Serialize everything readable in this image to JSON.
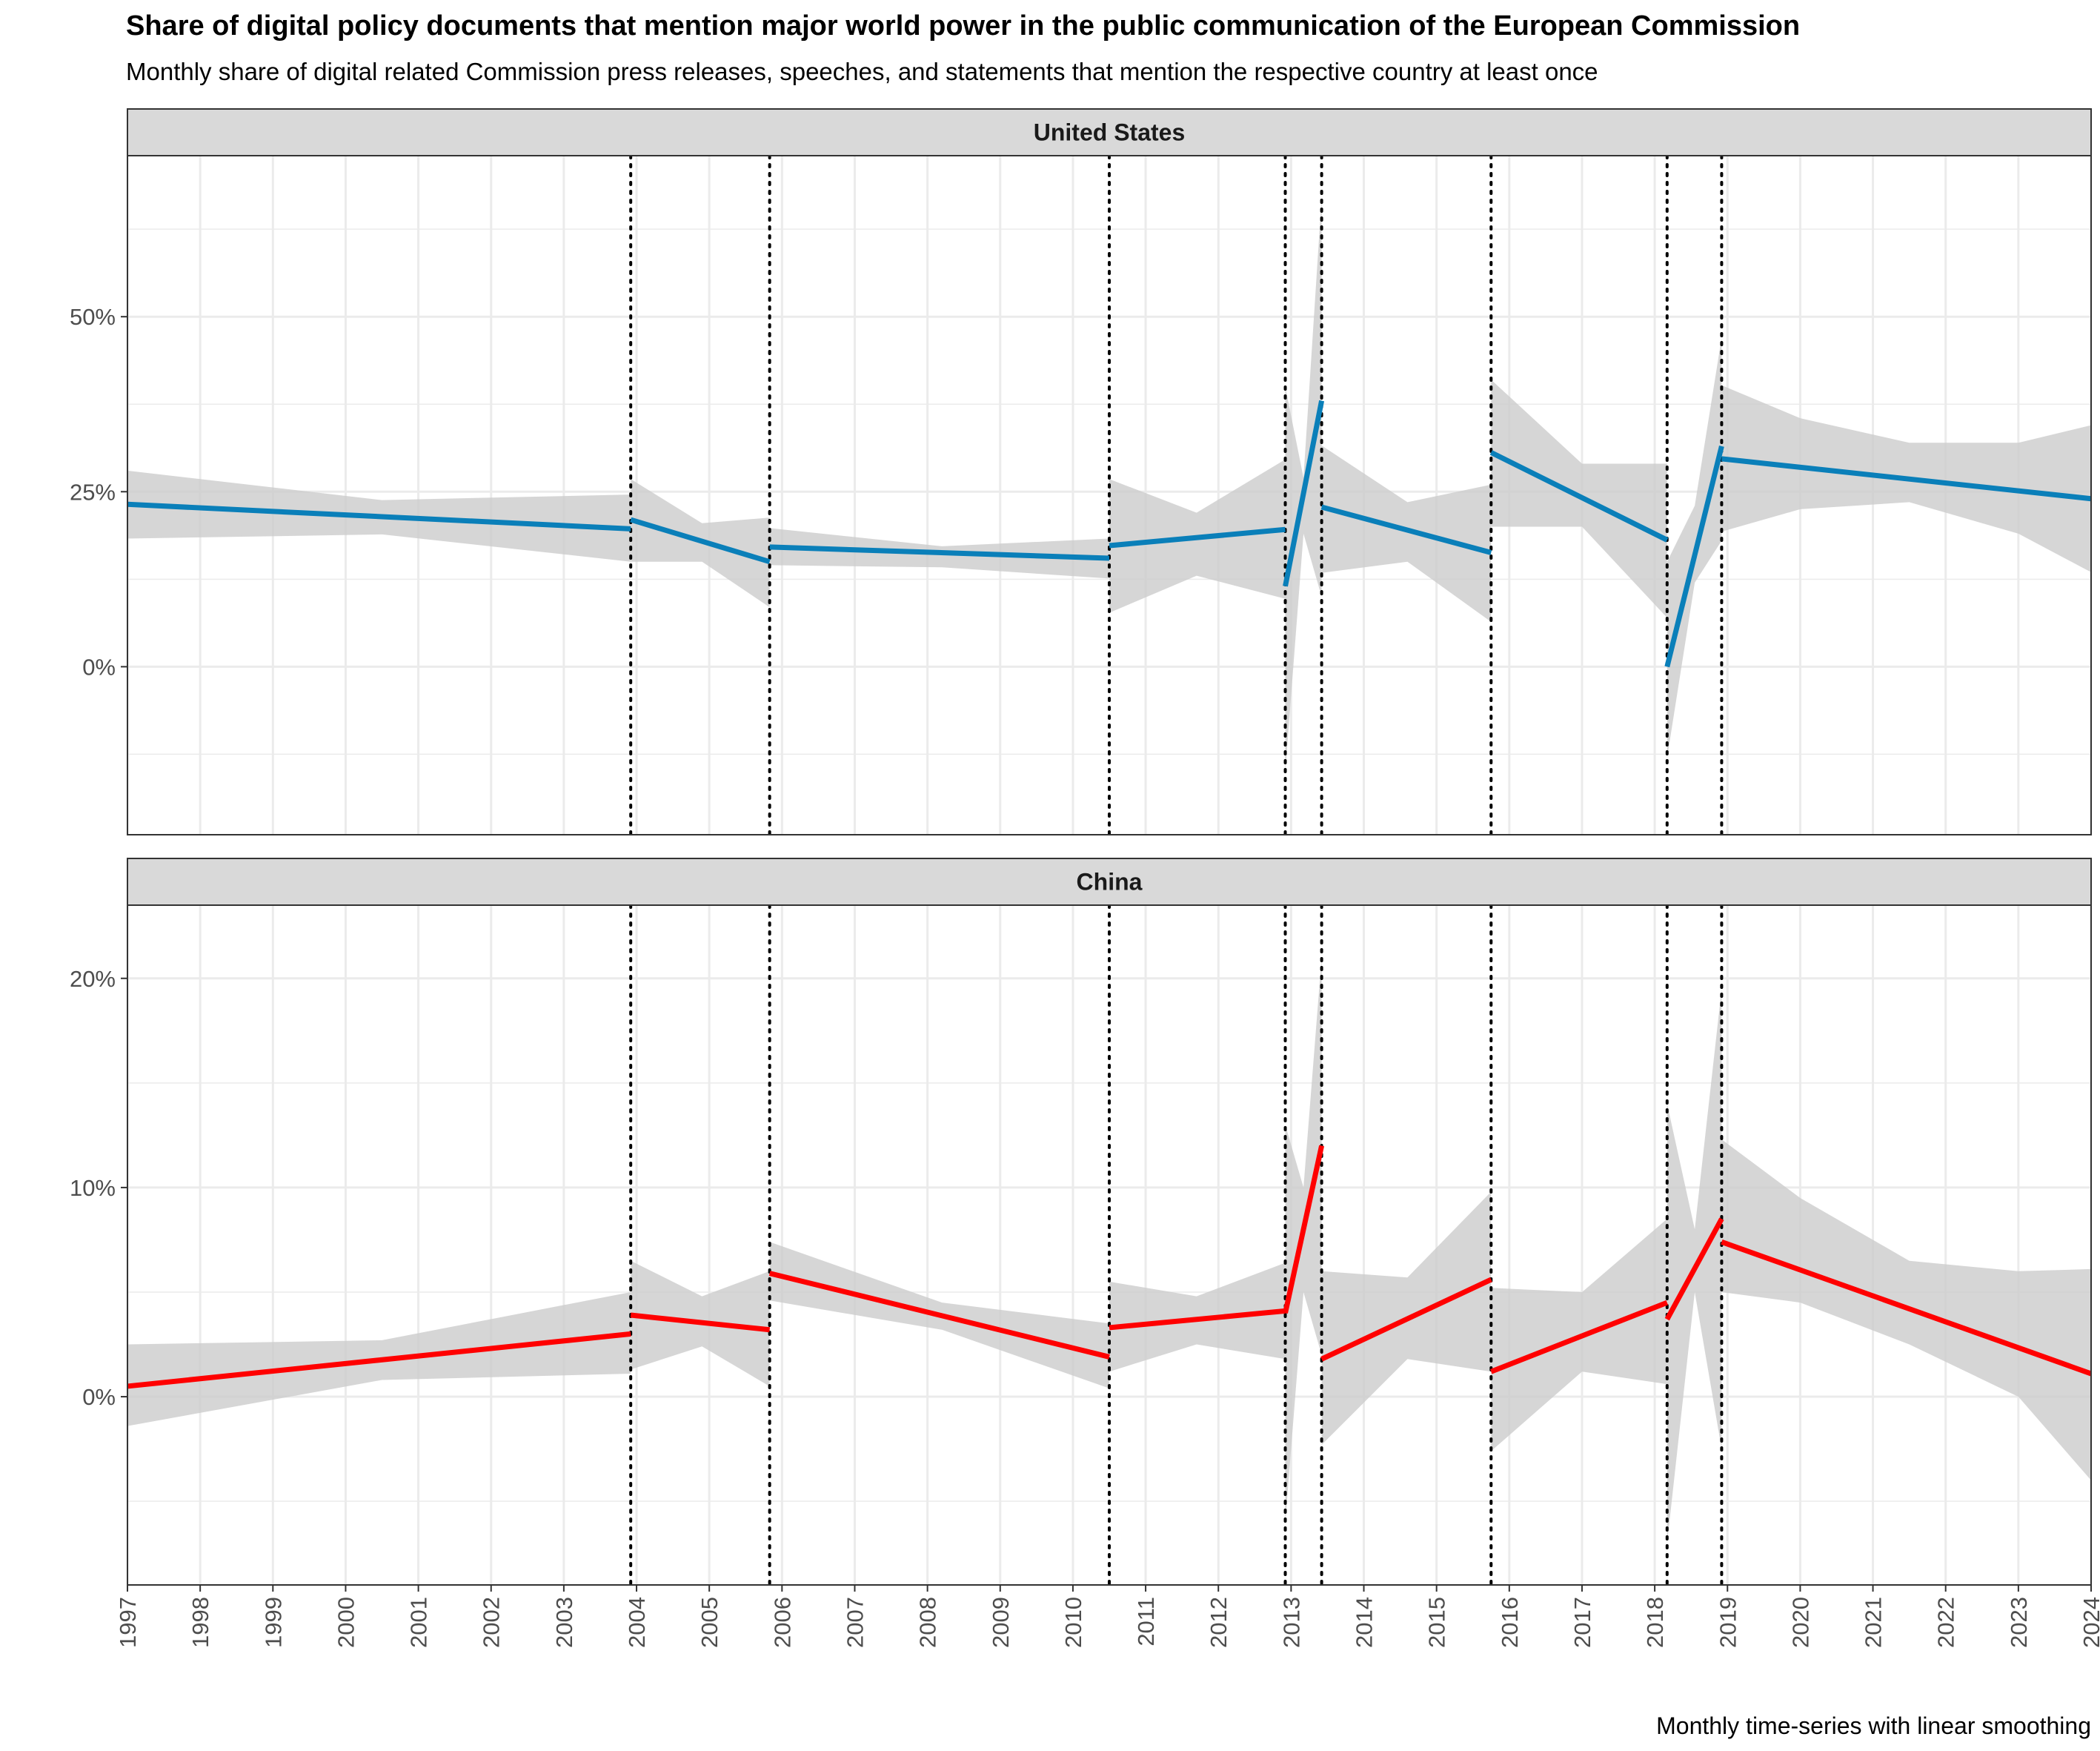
{
  "title": "Share of digital policy documents that mention major world power in the public communication of the European Commission",
  "subtitle": "Monthly share of digital related Commission press releases, speeches, and statements that mention the respective country at least once",
  "caption": "Monthly time-series with linear smoothing",
  "colors": {
    "united_states": "#0a7fb9",
    "china": "#ff0000",
    "ribbon": "#cccccc",
    "strip": "#d9d9d9",
    "grid": "#ebebeb",
    "border": "#333333",
    "vline": "#000000"
  },
  "chart_data": {
    "type": "line",
    "x_axis": {
      "range": [
        1997,
        2024
      ],
      "ticks": [
        "1997",
        "1998",
        "1999",
        "2000",
        "2001",
        "2002",
        "2003",
        "2004",
        "2005",
        "2006",
        "2007",
        "2008",
        "2009",
        "2010",
        "2011",
        "2012",
        "2013",
        "2014",
        "2015",
        "2016",
        "2017",
        "2018",
        "2019",
        "2020",
        "2021",
        "2022",
        "2023",
        "2024"
      ]
    },
    "breakpoints": [
      2003.92,
      2005.83,
      2010.5,
      2012.92,
      2013.42,
      2015.75,
      2018.17,
      2018.92
    ],
    "panels": [
      {
        "name": "United States",
        "color_key": "united_states",
        "ylim": [
          -0.24,
          0.73
        ],
        "y_ticks": [
          {
            "value": 0.0,
            "label": "0%"
          },
          {
            "value": 0.25,
            "label": "25%"
          },
          {
            "value": 0.5,
            "label": "50%"
          }
        ],
        "minor_y": [
          -0.125,
          0.125,
          0.375,
          0.625
        ],
        "segments": [
          {
            "x": [
              1997.0,
              2003.92
            ],
            "y": [
              0.232,
              0.197
            ],
            "ci_x": [
              1997.0,
              2000.5,
              2003.92
            ],
            "ci_low": [
              0.183,
              0.189,
              0.15
            ],
            "ci_high": [
              0.28,
              0.238,
              0.246
            ]
          },
          {
            "x": [
              2003.92,
              2005.83
            ],
            "y": [
              0.21,
              0.15
            ],
            "ci_x": [
              2003.92,
              2004.9,
              2005.83
            ],
            "ci_low": [
              0.15,
              0.15,
              0.085
            ],
            "ci_high": [
              0.268,
              0.205,
              0.213
            ]
          },
          {
            "x": [
              2005.83,
              2010.5
            ],
            "y": [
              0.171,
              0.155
            ],
            "ci_x": [
              2005.83,
              2008.2,
              2010.5
            ],
            "ci_low": [
              0.145,
              0.142,
              0.126
            ],
            "ci_high": [
              0.198,
              0.172,
              0.183
            ]
          },
          {
            "x": [
              2010.5,
              2012.92
            ],
            "y": [
              0.173,
              0.196
            ],
            "ci_x": [
              2010.5,
              2011.7,
              2012.92
            ],
            "ci_low": [
              0.077,
              0.13,
              0.097
            ],
            "ci_high": [
              0.268,
              0.22,
              0.296
            ]
          },
          {
            "x": [
              2012.92,
              2013.42
            ],
            "y": [
              0.115,
              0.38
            ],
            "ci_x": [
              2012.92,
              2013.17,
              2013.42
            ],
            "ci_low": [
              -0.15,
              0.19,
              0.1
            ],
            "ci_high": [
              0.4,
              0.27,
              0.67
            ]
          },
          {
            "x": [
              2013.42,
              2015.75
            ],
            "y": [
              0.228,
              0.163
            ],
            "ci_x": [
              2013.42,
              2014.6,
              2015.75
            ],
            "ci_low": [
              0.134,
              0.15,
              0.064
            ],
            "ci_high": [
              0.316,
              0.235,
              0.26
            ]
          },
          {
            "x": [
              2015.75,
              2018.17
            ],
            "y": [
              0.306,
              0.181
            ],
            "ci_x": [
              2015.75,
              2017.0,
              2018.17
            ],
            "ci_low": [
              0.2,
              0.2,
              0.07
            ],
            "ci_high": [
              0.41,
              0.29,
              0.29
            ]
          },
          {
            "x": [
              2018.17,
              2018.92
            ],
            "y": [
              0.0,
              0.315
            ],
            "ci_x": [
              2018.17,
              2018.55,
              2018.92
            ],
            "ci_low": [
              -0.13,
              0.12,
              0.18
            ],
            "ci_high": [
              0.15,
              0.23,
              0.47
            ]
          },
          {
            "x": [
              2018.92,
              2024.0
            ],
            "y": [
              0.297,
              0.24
            ],
            "ci_x": [
              2018.92,
              2020.0,
              2021.5,
              2023.0,
              2024.0
            ],
            "ci_low": [
              0.193,
              0.225,
              0.235,
              0.19,
              0.135
            ],
            "ci_high": [
              0.402,
              0.355,
              0.32,
              0.32,
              0.345
            ]
          }
        ]
      },
      {
        "name": "China",
        "color_key": "china",
        "ylim": [
          -0.09,
          0.235
        ],
        "y_ticks": [
          {
            "value": 0.0,
            "label": "0%"
          },
          {
            "value": 0.1,
            "label": "10%"
          },
          {
            "value": 0.2,
            "label": "20%"
          }
        ],
        "minor_y": [
          -0.05,
          0.05,
          0.15
        ],
        "segments": [
          {
            "x": [
              1997.0,
              2003.92
            ],
            "y": [
              0.005,
              0.03
            ],
            "ci_x": [
              1997.0,
              2000.5,
              2003.92
            ],
            "ci_low": [
              -0.014,
              0.008,
              0.011
            ],
            "ci_high": [
              0.025,
              0.027,
              0.05
            ]
          },
          {
            "x": [
              2003.92,
              2005.83
            ],
            "y": [
              0.039,
              0.032
            ],
            "ci_x": [
              2003.92,
              2004.9,
              2005.83
            ],
            "ci_low": [
              0.013,
              0.024,
              0.005
            ],
            "ci_high": [
              0.065,
              0.048,
              0.06
            ]
          },
          {
            "x": [
              2005.83,
              2010.5
            ],
            "y": [
              0.059,
              0.019
            ],
            "ci_x": [
              2005.83,
              2008.2,
              2010.5
            ],
            "ci_low": [
              0.046,
              0.032,
              0.004
            ],
            "ci_high": [
              0.074,
              0.045,
              0.035
            ]
          },
          {
            "x": [
              2010.5,
              2012.92
            ],
            "y": [
              0.033,
              0.041
            ],
            "ci_x": [
              2010.5,
              2011.7,
              2012.92
            ],
            "ci_low": [
              0.012,
              0.025,
              0.018
            ],
            "ci_high": [
              0.055,
              0.048,
              0.064
            ]
          },
          {
            "x": [
              2012.92,
              2013.42
            ],
            "y": [
              0.04,
              0.12
            ],
            "ci_x": [
              2012.92,
              2013.17,
              2013.42
            ],
            "ci_low": [
              -0.06,
              0.05,
              0.02
            ],
            "ci_high": [
              0.13,
              0.1,
              0.21
            ]
          },
          {
            "x": [
              2013.42,
              2015.75
            ],
            "y": [
              0.018,
              0.056
            ],
            "ci_x": [
              2013.42,
              2014.6,
              2015.75
            ],
            "ci_low": [
              -0.023,
              0.018,
              0.012
            ],
            "ci_high": [
              0.06,
              0.057,
              0.098
            ]
          },
          {
            "x": [
              2015.75,
              2018.17
            ],
            "y": [
              0.012,
              0.045
            ],
            "ci_x": [
              2015.75,
              2017.0,
              2018.17
            ],
            "ci_low": [
              -0.026,
              0.012,
              0.006
            ],
            "ci_high": [
              0.052,
              0.05,
              0.085
            ]
          },
          {
            "x": [
              2018.17,
              2018.92
            ],
            "y": [
              0.037,
              0.085
            ],
            "ci_x": [
              2018.17,
              2018.55,
              2018.92
            ],
            "ci_low": [
              -0.07,
              0.05,
              -0.025
            ],
            "ci_high": [
              0.14,
              0.08,
              0.195
            ]
          },
          {
            "x": [
              2018.92,
              2024.0
            ],
            "y": [
              0.074,
              0.011
            ],
            "ci_x": [
              2018.92,
              2020.0,
              2021.5,
              2023.0,
              2024.0
            ],
            "ci_low": [
              0.05,
              0.045,
              0.025,
              0.0,
              -0.04
            ],
            "ci_high": [
              0.123,
              0.095,
              0.065,
              0.06,
              0.061
            ]
          }
        ]
      }
    ]
  }
}
